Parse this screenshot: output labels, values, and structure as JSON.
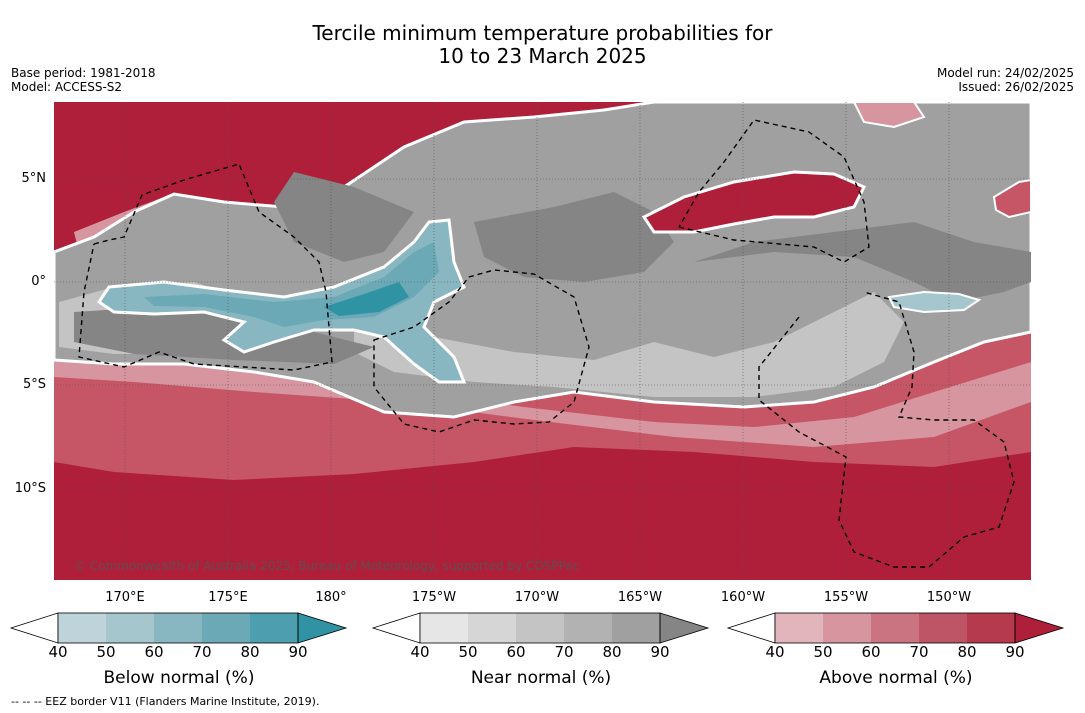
{
  "title_line1": "Tercile minimum temperature probabilities for",
  "title_line2": "10 to 23 March 2025",
  "base_period": "Base period: 1981-2018",
  "model": "Model: ACCESS-S2",
  "model_run": "Model run: 24/02/2025",
  "issued": "Issued: 26/02/2025",
  "copyright": "© Commonwealth of Australia 2025, Bureau of Meteorology, supported by COSPPac",
  "lat_labels": [
    "5°N",
    "0°",
    "5°S",
    "10°S"
  ],
  "lon_labels": [
    "170°E",
    "175°E",
    "180°",
    "175°W",
    "170°W",
    "165°W",
    "160°W",
    "155°W",
    "150°W"
  ],
  "colorbars": [
    {
      "label": "Below normal (%)",
      "ticks": [
        "40",
        "50",
        "60",
        "70",
        "80",
        "90"
      ],
      "colors": [
        "#ffffff",
        "#bed4da",
        "#a6c6cd",
        "#89b7c1",
        "#6aa9b5",
        "#4d9eae",
        "#2f93a4"
      ]
    },
    {
      "label": "Near normal (%)",
      "ticks": [
        "40",
        "50",
        "60",
        "70",
        "80",
        "90"
      ],
      "colors": [
        "#ffffff",
        "#e6e6e6",
        "#d6d6d6",
        "#c4c4c4",
        "#b2b2b2",
        "#a0a0a0",
        "#858585"
      ]
    },
    {
      "label": "Above normal (%)",
      "ticks": [
        "40",
        "50",
        "60",
        "70",
        "80",
        "90"
      ],
      "colors": [
        "#ffffff",
        "#e2b5bc",
        "#d6959f",
        "#ca7482",
        "#be5566",
        "#b63a4e",
        "#b01f3a"
      ]
    }
  ],
  "footer": "--  --  -- EEZ border V11 (Flanders Marine Institute, 2019)."
}
